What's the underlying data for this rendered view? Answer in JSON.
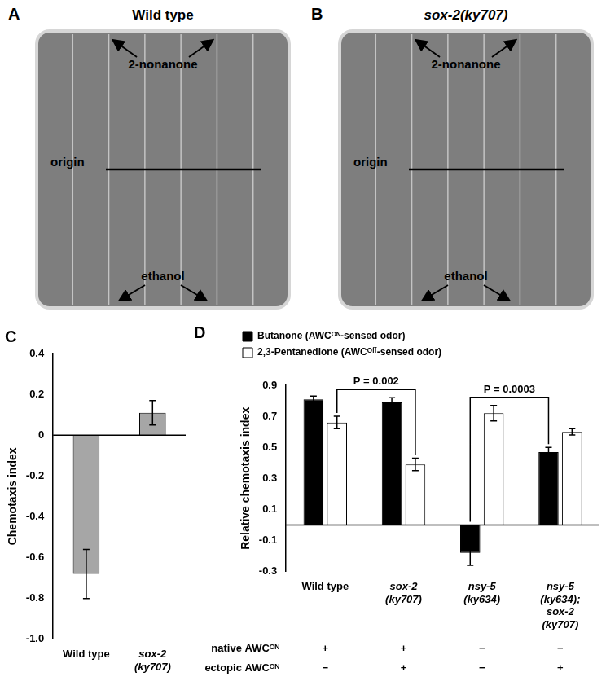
{
  "photos": [
    {
      "panel": "A",
      "title": "Wild type",
      "labels": {
        "top": "2-nonanone",
        "middle": "origin",
        "bottom": "ethanol"
      }
    },
    {
      "panel": "B",
      "title": "sox-2(ky707)",
      "labels": {
        "top": "2-nonanone",
        "middle": "origin",
        "bottom": "ethanol"
      }
    }
  ],
  "chart_data": [
    {
      "panel": "C",
      "type": "bar",
      "categories": [
        "Wild type",
        "sox-2(ky707)"
      ],
      "values": [
        -0.68,
        0.11
      ],
      "errors": [
        0.12,
        0.06
      ],
      "color": "#a6a6a6",
      "ylabel": "Chemotaxis index",
      "ylim": [
        -1,
        0.4
      ],
      "yticks": [
        {
          "value": -1,
          "label": "-1.0"
        },
        -0.8,
        -0.6,
        -0.4,
        -0.2,
        0,
        0.2,
        0.4
      ],
      "grid": false
    },
    {
      "panel": "D",
      "type": "bar",
      "categories": [
        "Wild type",
        "sox-2(ky707)",
        "nsy-5(ky634)",
        "nsy-5(ky634); sox-2(ky707)"
      ],
      "series": [
        {
          "name": "Butanone (AWCᴼᴺ-sensed odor)",
          "color": "#000000",
          "values": [
            0.81,
            0.79,
            -0.18,
            0.47
          ],
          "errors": [
            0.02,
            0.03,
            0.08,
            0.03
          ]
        },
        {
          "name": "2,3-Pentanedione (AWCᴼᶠᶠ-sensed odor)",
          "color": "#ffffff",
          "values": [
            0.66,
            0.39,
            0.72,
            0.6
          ],
          "errors": [
            0.04,
            0.04,
            0.05,
            0.02
          ]
        }
      ],
      "ylabel": "Relative chemotaxis index",
      "ylim": [
        -0.3,
        0.9
      ],
      "yticks": [
        -0.3,
        -0.1,
        0.1,
        0.3,
        0.5,
        0.7,
        0.9
      ],
      "grid": false,
      "legend": "top",
      "annotations": [
        {
          "text": "P = 0.002",
          "series": 1,
          "between": [
            0,
            1
          ]
        },
        {
          "text": "P = 0.0003",
          "series": 0,
          "between": [
            2,
            3
          ]
        }
      ],
      "table": {
        "rows": [
          {
            "label": "native AWCᴼᴺ",
            "values": [
              "+",
              "+",
              "−",
              "−"
            ]
          },
          {
            "label": "ectopic AWCᴼᴺ",
            "values": [
              "−",
              "+",
              "−",
              "+"
            ]
          }
        ]
      }
    }
  ]
}
